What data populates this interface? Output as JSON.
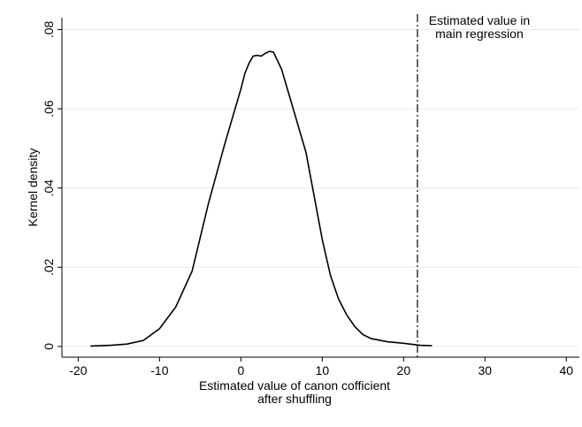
{
  "chart_data": {
    "type": "line",
    "ylabel": "Kernel density",
    "xlabel": [
      "Estimated value of canon cofficient",
      "after shuffling"
    ],
    "x": [
      -18.5,
      -16,
      -14,
      -12,
      -10,
      -8,
      -6,
      -4,
      -2,
      0,
      0.5,
      1,
      1.5,
      2,
      2.5,
      3,
      3.5,
      4,
      5,
      6,
      7,
      8,
      9,
      10,
      11,
      12,
      13,
      14,
      15,
      16,
      18,
      20,
      22,
      23.5
    ],
    "series": [
      {
        "color": "#000000",
        "values": [
          0.0001,
          0.0003,
          0.0006,
          0.0015,
          0.0045,
          0.01,
          0.019,
          0.036,
          0.051,
          0.065,
          0.069,
          0.0715,
          0.0733,
          0.0735,
          0.0733,
          0.074,
          0.0745,
          0.0743,
          0.07,
          0.063,
          0.056,
          0.049,
          0.038,
          0.027,
          0.018,
          0.012,
          0.008,
          0.005,
          0.003,
          0.002,
          0.0012,
          0.0008,
          0.0003,
          0.0002
        ]
      }
    ],
    "xlim": [
      -22,
      41.6
    ],
    "ylim": [
      -0.0027,
      0.083
    ],
    "xticks": [
      -20,
      -10,
      0,
      10,
      20,
      30,
      40
    ],
    "yticks": [
      0,
      {
        "value": 0.02,
        "label": ".02"
      },
      {
        "value": 0.04,
        "label": ".04"
      },
      {
        "value": 0.06,
        "label": ".06"
      },
      {
        "value": 0.08,
        "label": ".08"
      }
    ],
    "grid": true,
    "vline": {
      "x": 21.7,
      "label": [
        "Estimated value in",
        "main regression"
      ]
    }
  }
}
